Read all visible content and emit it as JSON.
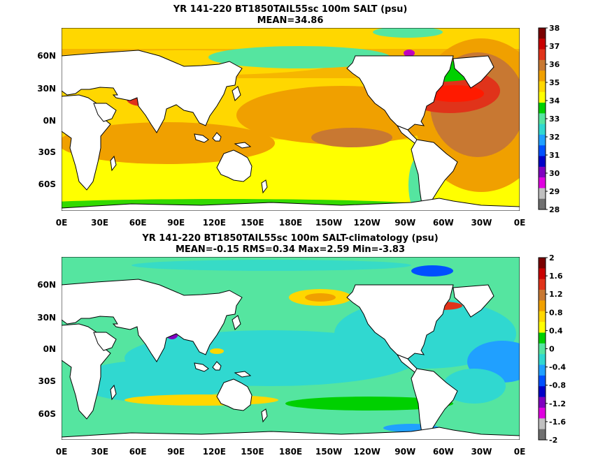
{
  "panels": [
    {
      "title_line1": "YR 141-220 BT1850TAIL55sc 100m SALT (psu)",
      "title_line2": "MEAN=34.86",
      "colorbar": {
        "labels": [
          "38",
          "37",
          "36",
          "35",
          "34",
          "33",
          "32",
          "31",
          "30",
          "29",
          "28"
        ],
        "colors": [
          "#7a0000",
          "#c80000",
          "#e0331a",
          "#c87832",
          "#f0a000",
          "#ffd700",
          "#ffff00",
          "#00d000",
          "#55e5a0",
          "#30d8d0",
          "#20a0ff",
          "#0050ff",
          "#0000c8",
          "#8000c0",
          "#e000e0",
          "#c0c0c0",
          "#707070"
        ]
      }
    },
    {
      "title_line1": "YR 141-220 BT1850TAIL55sc 100m SALT-climatology (psu)",
      "title_line2": "MEAN=-0.15   RMS=0.34   Max=2.59   Min=-3.83",
      "colorbar": {
        "labels": [
          "2",
          "1.6",
          "1.2",
          "0.8",
          "0.4",
          "0",
          "-0.4",
          "-0.8",
          "-1.2",
          "-1.6",
          "-2"
        ],
        "colors": [
          "#7a0000",
          "#c80000",
          "#e0331a",
          "#c87832",
          "#f0a000",
          "#ffd700",
          "#ffff00",
          "#00d000",
          "#55e5a0",
          "#30d8d0",
          "#20a0ff",
          "#0050ff",
          "#0000c8",
          "#8000c0",
          "#e000e0",
          "#c0c0c0",
          "#707070"
        ]
      }
    }
  ],
  "x_tick_labels": [
    "0E",
    "30E",
    "60E",
    "90E",
    "120E",
    "150E",
    "180E",
    "150W",
    "120W",
    "90W",
    "60W",
    "30W",
    "0E"
  ],
  "y_tick_labels": [
    "60N",
    "30N",
    "0N",
    "30S",
    "60S"
  ],
  "colors": {
    "land": "#ffffff",
    "coast": "#000000",
    "ocean_top_base": "#ffd700",
    "ocean_bottom_base": "#55e5a0"
  }
}
